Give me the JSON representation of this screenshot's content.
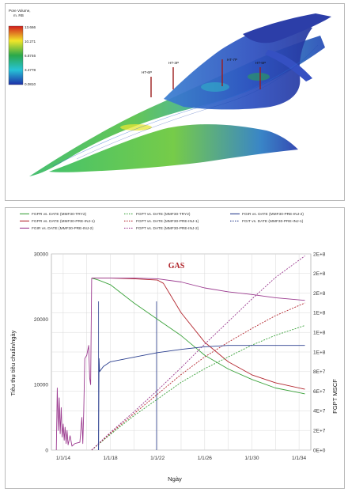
{
  "model": {
    "colorbar": {
      "title_lines": [
        "Pore Volume,",
        "m. RB"
      ],
      "ticks": [
        "13.666",
        "10.271",
        "6.8746",
        "3.4778",
        "0.0810"
      ],
      "colors": [
        "#d21c1c",
        "#f2e629",
        "#2aa84a",
        "#27c2d6",
        "#1d2fa8"
      ]
    },
    "wells": [
      {
        "label": "HT-6P"
      },
      {
        "label": "HT-3P"
      },
      {
        "label": "HT-7P"
      },
      {
        "label": "HT-5P"
      }
    ]
  },
  "legend": [
    {
      "text": "FGPR  vs.  DATE (MMF30-TRY2)",
      "color": "#3aa23a",
      "style": "solid"
    },
    {
      "text": "FGPT  vs.  DATE (MMF30-TRY2)",
      "color": "#3aa23a",
      "style": "dotted"
    },
    {
      "text": "FGIR  vs.  DATE (MMF30-PRE-INJ-2)",
      "color": "#2b3f8f",
      "style": "solid"
    },
    {
      "text": "FGPR  vs.  DATE (MMF30-PRE-INJ-1)",
      "color": "#b3262e",
      "style": "solid"
    },
    {
      "text": "FGPT  vs.  DATE (MMF30-PRE-INJ-1)",
      "color": "#b3262e",
      "style": "dotted"
    },
    {
      "text": "FGIT  vs.  DATE (MMF30-PRE-INJ-1)",
      "color": "#2b3f8f",
      "style": "dotted"
    },
    {
      "text": "FGIR  vs.  DATE (MMF30-PRE-INJ-2)",
      "color": "#9b3a8f",
      "style": "solid"
    },
    {
      "text": "FGPT  vs.  DATE (MMF30-PRE-INJ-2)",
      "color": "#9b3a8f",
      "style": "dotted"
    }
  ],
  "chart_data": {
    "type": "line",
    "title": "GAS",
    "xlabel": "Ngày",
    "ylabel": "Tiêu thụ tiêu chuẩn/ngày",
    "y2label": "FGPT  MSCF",
    "x_ticks": [
      "1/1/14",
      "1/1/18",
      "1/1/22",
      "1/1/26",
      "1/1/30",
      "1/1/34"
    ],
    "y_ticks": [
      "0",
      "10000",
      "20000",
      "30000"
    ],
    "y2_ticks": [
      "0E+0",
      "2E+7",
      "4E+7",
      "6E+7",
      "8E+7",
      "1E+8",
      "1E+8",
      "1E+8",
      "2E+8",
      "2E+8",
      "2E+8"
    ],
    "xlim": [
      "2013-01-01",
      "2035-01-01"
    ],
    "ylim": [
      0,
      30000
    ],
    "y2lim": [
      0,
      200000000.0
    ],
    "grid": true,
    "series": [
      {
        "name": "FGPR vs. DATE (MMF30-TRY2)",
        "axis": "left",
        "color": "#3aa23a",
        "dash": false,
        "x": [
          "2016-06-01",
          "2017-01-01",
          "2018-01-01",
          "2020-01-01",
          "2022-01-01",
          "2024-01-01",
          "2026-01-01",
          "2028-01-01",
          "2030-01-01",
          "2032-01-01",
          "2034-07-01"
        ],
        "y": [
          26300,
          26000,
          25300,
          22500,
          20000,
          17500,
          14500,
          12400,
          10800,
          9500,
          8600
        ]
      },
      {
        "name": "FGPR vs. DATE (MMF30-PRE-INJ-1)",
        "axis": "left",
        "color": "#b3262e",
        "dash": false,
        "x": [
          "2016-06-01",
          "2018-01-01",
          "2020-01-01",
          "2022-01-01",
          "2022-07-01",
          "2023-01-01",
          "2024-01-01",
          "2026-01-01",
          "2028-01-01",
          "2030-01-01",
          "2032-01-01",
          "2034-07-01"
        ],
        "y": [
          26300,
          26300,
          26200,
          26000,
          25500,
          24000,
          21000,
          16500,
          13500,
          11500,
          10300,
          9300
        ]
      },
      {
        "name": "FGIR vs. DATE (MMF30-PRE-INJ-2)",
        "axis": "left",
        "color": "#9b3a8f",
        "dash": false,
        "x": [
          "2016-06-01",
          "2018-01-01",
          "2020-01-01",
          "2022-01-01",
          "2024-01-01",
          "2026-01-01",
          "2028-01-01",
          "2030-01-01",
          "2032-01-01",
          "2034-07-01"
        ],
        "y": [
          26300,
          26300,
          26300,
          26200,
          25700,
          24800,
          24200,
          23800,
          23300,
          22900
        ]
      },
      {
        "name": "FGPT vs. DATE (MMF30-TRY2)",
        "axis": "right",
        "color": "#3aa23a",
        "dash": true,
        "x": [
          "2016-06-01",
          "2018-01-01",
          "2020-01-01",
          "2022-01-01",
          "2024-01-01",
          "2026-01-01",
          "2028-01-01",
          "2030-01-01",
          "2032-01-01",
          "2034-07-01"
        ],
        "y": [
          0,
          16000000.0,
          35000000.0,
          52000000.0,
          69000000.0,
          83000000.0,
          95000000.0,
          107000000.0,
          117000000.0,
          127000000.0
        ]
      },
      {
        "name": "FGPT vs. DATE (MMF30-PRE-INJ-1)",
        "axis": "right",
        "color": "#b3262e",
        "dash": true,
        "x": [
          "2016-06-01",
          "2018-01-01",
          "2020-01-01",
          "2022-01-01",
          "2024-01-01",
          "2026-01-01",
          "2028-01-01",
          "2030-01-01",
          "2032-01-01",
          "2034-07-01"
        ],
        "y": [
          0,
          17000000.0,
          37000000.0,
          57000000.0,
          77000000.0,
          95000000.0,
          110000000.0,
          124000000.0,
          137000000.0,
          150000000.0
        ]
      },
      {
        "name": "FGPT vs. DATE (MMF30-PRE-INJ-2)",
        "axis": "right",
        "color": "#9b3a8f",
        "dash": true,
        "x": [
          "2016-06-01",
          "2018-01-01",
          "2020-01-01",
          "2022-01-01",
          "2024-01-01",
          "2026-01-01",
          "2028-01-01",
          "2030-01-01",
          "2032-01-01",
          "2034-07-01"
        ],
        "y": [
          0,
          18000000.0,
          39000000.0,
          61000000.0,
          84000000.0,
          108000000.0,
          131000000.0,
          154000000.0,
          176000000.0,
          198000000.0
        ]
      },
      {
        "name": "FGIR vs. DATE (MMF30-PRE-INJ-2) early",
        "axis": "left",
        "color": "#9b3a8f",
        "dash": false,
        "x": [
          "2013-06-01",
          "2013-07-01",
          "2013-08-01",
          "2013-09-01",
          "2013-10-01",
          "2013-11-01",
          "2013-12-01",
          "2014-01-01",
          "2014-02-01",
          "2014-03-01",
          "2014-04-01",
          "2014-05-01",
          "2014-06-01",
          "2014-08-01",
          "2014-10-01",
          "2015-01-01",
          "2015-06-01",
          "2015-08-01",
          "2015-09-01",
          "2015-10-01",
          "2015-11-01",
          "2016-01-01",
          "2016-03-01",
          "2016-04-01",
          "2016-05-01",
          "2016-06-01"
        ],
        "y": [
          0,
          9500,
          3000,
          8000,
          2500,
          6500,
          2000,
          4000,
          1500,
          3500,
          1000,
          3000,
          800,
          2200,
          600,
          1000,
          1200,
          5000,
          1000,
          6000,
          14000,
          14500,
          16000,
          11000,
          10000,
          26300
        ]
      },
      {
        "name": "FGIR vs. DATE (MMF30-PRE-INJ-1)",
        "axis": "left",
        "color": "#2b3f8f",
        "dash": false,
        "x": [
          "2017-01-01",
          "2017-01-15",
          "2017-02-01",
          "2017-06-01",
          "2018-01-01",
          "2020-01-01",
          "2022-01-01",
          "2024-01-01",
          "2026-01-01",
          "2028-01-01",
          "2030-01-01",
          "2034-07-01"
        ],
        "y": [
          0,
          14000,
          12000,
          12800,
          13500,
          14200,
          14900,
          15400,
          15800,
          16000,
          16000,
          16000
        ]
      }
    ],
    "vlines": [
      "2017-01-01",
      "2021-12-01"
    ]
  }
}
